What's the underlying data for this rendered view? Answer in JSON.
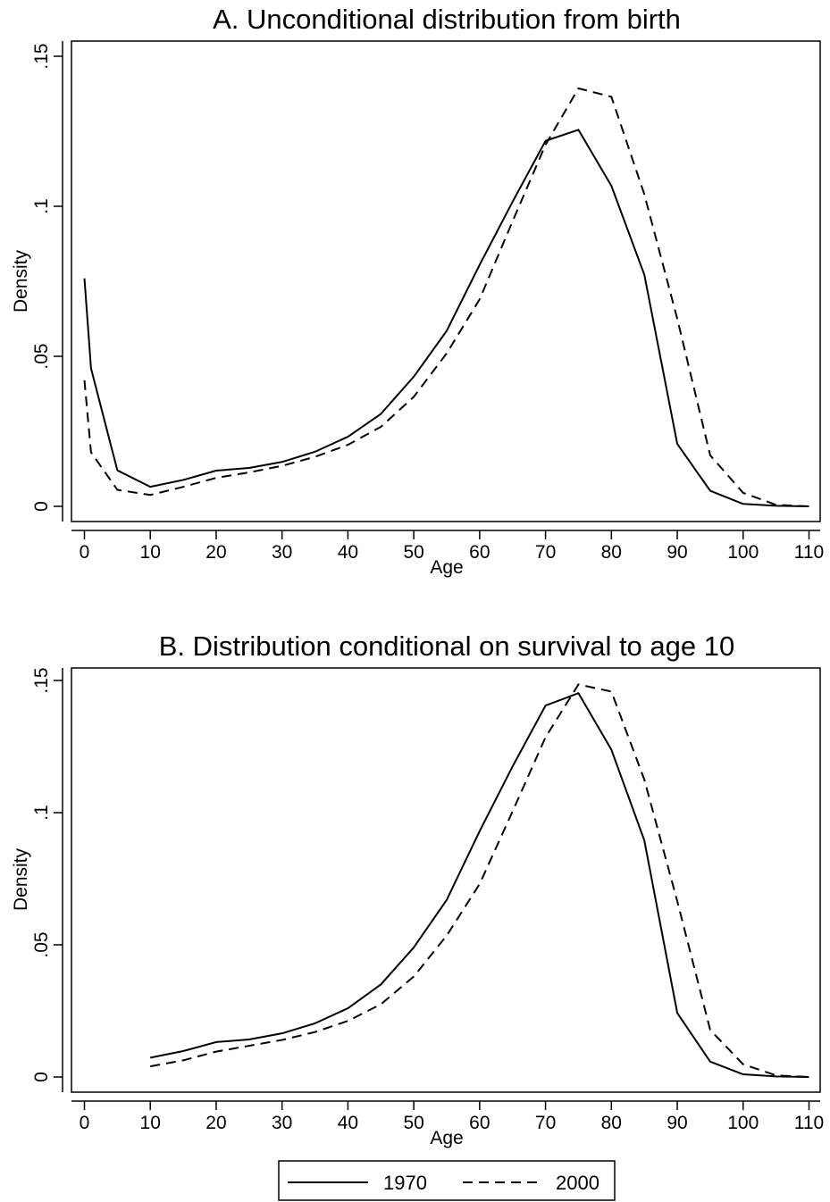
{
  "chart_data": [
    {
      "type": "line",
      "title": "A. Unconditional distribution from birth",
      "xlabel": "Age",
      "ylabel": "Density",
      "xlim": [
        0,
        110
      ],
      "ylim": [
        0,
        0.15
      ],
      "xticks": [
        0,
        10,
        20,
        30,
        40,
        50,
        60,
        70,
        80,
        90,
        100,
        110
      ],
      "xtick_labels": [
        "0",
        "10",
        "20",
        "30",
        "40",
        "50",
        "60",
        "70",
        "80",
        "90",
        "100",
        "110"
      ],
      "yticks": [
        0,
        0.05,
        0.1,
        0.15
      ],
      "ytick_labels": [
        "0",
        ".05",
        ".1",
        ".15"
      ],
      "grid": false,
      "series": [
        {
          "name": "1970",
          "style": "solid",
          "x": [
            0,
            1,
            5,
            10,
            15,
            20,
            25,
            30,
            35,
            40,
            45,
            50,
            55,
            60,
            65,
            70,
            75,
            80,
            85,
            90,
            95,
            100,
            105,
            110
          ],
          "y": [
            0.076,
            0.046,
            0.012,
            0.0065,
            0.0088,
            0.0119,
            0.0128,
            0.0148,
            0.0182,
            0.0232,
            0.0308,
            0.0432,
            0.0585,
            0.0805,
            0.1015,
            0.1218,
            0.1255,
            0.1068,
            0.0772,
            0.0208,
            0.0052,
            0.0008,
            0.0002,
            0.0
          ]
        },
        {
          "name": "2000",
          "style": "dashed",
          "x": [
            0,
            1,
            5,
            10,
            15,
            20,
            25,
            30,
            35,
            40,
            45,
            50,
            55,
            60,
            65,
            70,
            75,
            80,
            85,
            90,
            95,
            100,
            105,
            110
          ],
          "y": [
            0.042,
            0.018,
            0.0055,
            0.0038,
            0.0065,
            0.0095,
            0.0113,
            0.0135,
            0.0165,
            0.0205,
            0.0265,
            0.0365,
            0.051,
            0.069,
            0.095,
            0.1205,
            0.1393,
            0.1365,
            0.104,
            0.0625,
            0.017,
            0.0045,
            0.0005,
            0.0
          ]
        }
      ]
    },
    {
      "type": "line",
      "title": "B. Distribution conditional on survival to age 10",
      "xlabel": "Age",
      "ylabel": "Density",
      "xlim": [
        0,
        110
      ],
      "ylim": [
        0,
        0.15
      ],
      "xticks": [
        0,
        10,
        20,
        30,
        40,
        50,
        60,
        70,
        80,
        90,
        100,
        110
      ],
      "xtick_labels": [
        "0",
        "10",
        "20",
        "30",
        "40",
        "50",
        "60",
        "70",
        "80",
        "90",
        "100",
        "110"
      ],
      "yticks": [
        0,
        0.05,
        0.1,
        0.15
      ],
      "ytick_labels": [
        "0",
        ".05",
        ".1",
        ".15"
      ],
      "grid": false,
      "series": [
        {
          "name": "1970",
          "style": "solid",
          "x": [
            10,
            15,
            20,
            25,
            30,
            35,
            40,
            45,
            50,
            55,
            60,
            65,
            70,
            75,
            80,
            85,
            90,
            95,
            100,
            105,
            110
          ],
          "y": [
            0.0073,
            0.0098,
            0.0132,
            0.0142,
            0.0165,
            0.0203,
            0.026,
            0.035,
            0.049,
            0.067,
            0.093,
            0.1175,
            0.1405,
            0.1452,
            0.1238,
            0.0895,
            0.0242,
            0.0058,
            0.001,
            0.0002,
            0.0
          ]
        },
        {
          "name": "2000",
          "style": "dashed",
          "x": [
            10,
            15,
            20,
            25,
            30,
            35,
            40,
            45,
            50,
            55,
            60,
            65,
            70,
            75,
            80,
            85,
            90,
            95,
            100,
            105,
            110
          ],
          "y": [
            0.004,
            0.0063,
            0.0096,
            0.0118,
            0.014,
            0.017,
            0.0212,
            0.0275,
            0.038,
            0.0535,
            0.073,
            0.1005,
            0.1285,
            0.1485,
            0.1458,
            0.1125,
            0.0665,
            0.0178,
            0.0048,
            0.0006,
            0.0
          ]
        }
      ]
    }
  ],
  "legend": {
    "placement": "bottom",
    "entries": [
      {
        "label": "1970",
        "style": "solid"
      },
      {
        "label": "2000",
        "style": "dashed"
      }
    ]
  }
}
